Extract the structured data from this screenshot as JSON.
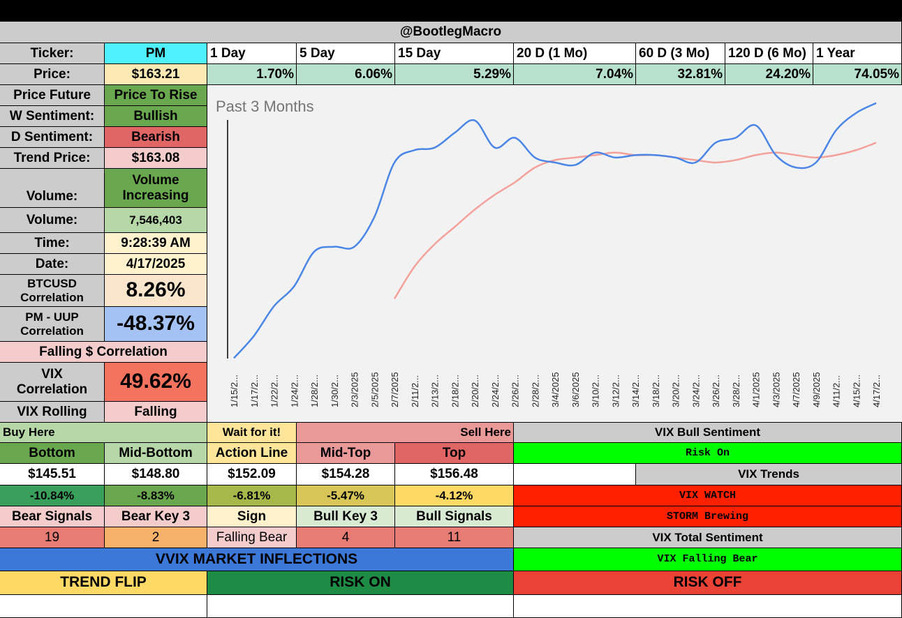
{
  "title": "@BootlegMacro",
  "ticker_label": "Ticker:",
  "ticker": "PM",
  "price_label": "Price:",
  "price": "$163.21",
  "periods": [
    {
      "label": "1 Day",
      "value": "1.70%"
    },
    {
      "label": "5 Day",
      "value": "6.06%"
    },
    {
      "label": "15 Day",
      "value": "5.29%"
    },
    {
      "label": "20 D (1 Mo)",
      "value": "7.04%"
    },
    {
      "label": "60 D (3 Mo)",
      "value": "32.81%"
    },
    {
      "label": "120 D (6 Mo)",
      "value": "24.20%"
    },
    {
      "label": "1 Year",
      "value": "74.05%"
    }
  ],
  "left": {
    "price_future_label": "Price Future",
    "price_future": "Price To Rise",
    "w_sent_label": "W Sentiment:",
    "w_sent": "Bullish",
    "d_sent_label": "D Sentiment:",
    "d_sent": "Bearish",
    "trend_label": "Trend Price:",
    "trend": "$163.08",
    "volume_label": "Volume:",
    "volume_state": "Volume Increasing",
    "volume2_label": "Volume:",
    "volume": "7,546,403",
    "time_label": "Time:",
    "time": "9:28:39 AM",
    "date_label": "Date:",
    "date": "4/17/2025",
    "btc_label": "BTCUSD Correlation",
    "btc": "8.26%",
    "uup_label": "PM - UUP Correlation",
    "uup": "-48.37%",
    "falling": "Falling $ Correlation",
    "vix_label": "VIX Correlation",
    "vix": "49.62%",
    "vix_roll_label": "VIX Rolling",
    "vix_roll": "Falling"
  },
  "levels": {
    "buy_here": "Buy Here",
    "wait": "Wait for it!",
    "sell_here": "Sell Here",
    "headers": [
      "Bottom",
      "Mid-Bottom",
      "Action Line",
      "Mid-Top",
      "Top"
    ],
    "prices": [
      "$145.51",
      "$148.80",
      "$152.09",
      "$154.28",
      "$156.48"
    ],
    "pcts": [
      "-10.84%",
      "-8.83%",
      "-6.81%",
      "-5.47%",
      "-4.12%"
    ],
    "signal_headers": [
      "Bear Signals",
      "Bear Key 3",
      "Sign",
      "Bull Key 3",
      "Bull Signals"
    ],
    "signal_values": [
      "19",
      "2",
      "Falling Bear",
      "4",
      "11"
    ]
  },
  "vix": {
    "bull_sent_label": "VIX Bull Sentiment",
    "risk_on": "Risk On",
    "trends_label": "VIX Trends",
    "watch": "VIX WATCH",
    "storm": "STORM Brewing",
    "total_label": "VIX Total Sentiment",
    "falling_bear": "VIX Falling Bear"
  },
  "vvix": {
    "title": "VVIX MARKET INFLECTIONS",
    "trend_flip": "TREND FLIP",
    "risk_on": "RISK ON",
    "risk_off": "RISK OFF"
  },
  "colors": {
    "blue_line": "#4a86e8",
    "red_line": "#f4a09b"
  },
  "chart_data": {
    "type": "line",
    "title": "Past 3 Months",
    "categories": [
      "1/15/2...",
      "1/17/2...",
      "1/22/2...",
      "1/24/2...",
      "1/28/2...",
      "1/30/2...",
      "2/3/2025",
      "2/5/2025",
      "2/7/2025",
      "2/11/2...",
      "2/13/2...",
      "2/18/2...",
      "2/20/2...",
      "2/24/2...",
      "2/26/2...",
      "2/28/2...",
      "3/4/2025",
      "3/6/2025",
      "3/10/2...",
      "3/12/2...",
      "3/14/2...",
      "3/18/2...",
      "3/20/2...",
      "3/24/2...",
      "3/26/2...",
      "3/28/2...",
      "4/1/2025",
      "4/3/2025",
      "4/7/2025",
      "4/9/2025",
      "4/11/2...",
      "4/15/2...",
      "4/17/2..."
    ],
    "ylim": [
      0,
      100
    ],
    "series": [
      {
        "values": [
          1,
          10,
          22,
          30,
          44,
          46,
          46,
          58,
          80,
          85,
          86,
          92,
          97,
          86,
          90,
          82,
          80,
          79,
          84,
          82,
          83,
          83,
          82,
          80,
          88,
          90,
          95,
          83,
          78,
          80,
          93,
          100,
          104
        ]
      },
      {
        "values": [
          null,
          null,
          null,
          null,
          null,
          null,
          null,
          null,
          25,
          38,
          47,
          54,
          61,
          67,
          72,
          78,
          81,
          82,
          83,
          84,
          83,
          83,
          82,
          81,
          80,
          81,
          83,
          84,
          83,
          82,
          83,
          85,
          88
        ]
      }
    ]
  }
}
